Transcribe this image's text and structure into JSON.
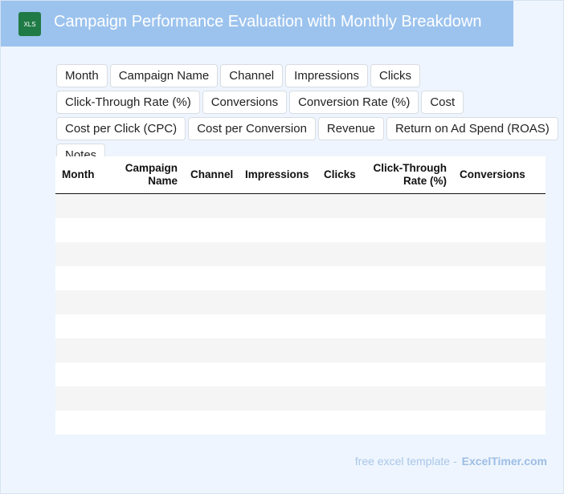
{
  "header": {
    "icon_label": "XLS",
    "title": "Campaign Performance Evaluation with Monthly Breakdown"
  },
  "filters": [
    "Month",
    "Campaign Name",
    "Channel",
    "Impressions",
    "Clicks",
    "Click-Through Rate (%)",
    "Conversions",
    "Conversion Rate (%)",
    "Cost",
    "Cost per Click (CPC)",
    "Cost per Conversion",
    "Revenue",
    "Return on Ad Spend (ROAS)",
    "Notes"
  ],
  "table": {
    "columns": [
      "Month",
      "Campaign Name",
      "Channel",
      "Impressions",
      "Clicks",
      "Click-Through Rate (%)",
      "Conversions"
    ]
  },
  "footer": {
    "text": "free excel template -",
    "brand": "ExcelTimer.com"
  }
}
